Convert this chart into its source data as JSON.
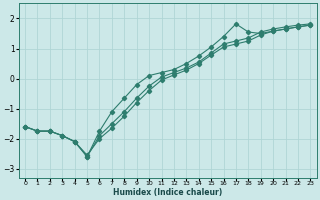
{
  "title": "",
  "xlabel": "Humidex (Indice chaleur)",
  "bg_color": "#cce8e8",
  "grid_color": "#b0d5d5",
  "line_color": "#2e7d6e",
  "xlim": [
    -0.5,
    23.5
  ],
  "ylim": [
    -3.3,
    2.5
  ],
  "yticks": [
    -3,
    -2,
    -1,
    0,
    1,
    2
  ],
  "xticks": [
    0,
    1,
    2,
    3,
    4,
    5,
    6,
    7,
    8,
    9,
    10,
    11,
    12,
    13,
    14,
    15,
    16,
    17,
    18,
    19,
    20,
    21,
    22,
    23
  ],
  "line1_x": [
    0,
    1,
    2,
    3,
    4,
    5,
    6,
    7,
    8,
    9,
    10,
    11,
    12,
    13,
    14,
    15,
    16,
    17,
    18,
    19,
    20,
    21,
    22,
    23
  ],
  "line1_y": [
    -1.6,
    -1.75,
    -1.75,
    -1.9,
    -2.1,
    -2.6,
    -1.9,
    -1.5,
    -1.1,
    -0.65,
    -0.25,
    0.05,
    0.2,
    0.35,
    0.55,
    0.85,
    1.15,
    1.25,
    1.35,
    1.55,
    1.65,
    1.72,
    1.78,
    1.82
  ],
  "line2_x": [
    0,
    1,
    2,
    3,
    4,
    5,
    6,
    7,
    8,
    9,
    10,
    11,
    12,
    13,
    14,
    15,
    16,
    17,
    18,
    19,
    20,
    21,
    22,
    23
  ],
  "line2_y": [
    -1.6,
    -1.75,
    -1.75,
    -1.9,
    -2.1,
    -2.55,
    -2.0,
    -1.65,
    -1.25,
    -0.8,
    -0.4,
    -0.05,
    0.12,
    0.28,
    0.5,
    0.78,
    1.05,
    1.15,
    1.25,
    1.45,
    1.58,
    1.65,
    1.72,
    1.78
  ],
  "line3_x": [
    0,
    1,
    2,
    3,
    4,
    5,
    6,
    7,
    8,
    9,
    10,
    11,
    12,
    13,
    14,
    15,
    16,
    17,
    18,
    19,
    20,
    21,
    22,
    23
  ],
  "line3_y": [
    -1.6,
    -1.75,
    -1.75,
    -1.9,
    -2.1,
    -2.6,
    -1.75,
    -1.1,
    -0.65,
    -0.2,
    0.1,
    0.2,
    0.3,
    0.5,
    0.75,
    1.05,
    1.4,
    1.82,
    1.55,
    1.5,
    1.58,
    1.65,
    1.72,
    1.78
  ]
}
